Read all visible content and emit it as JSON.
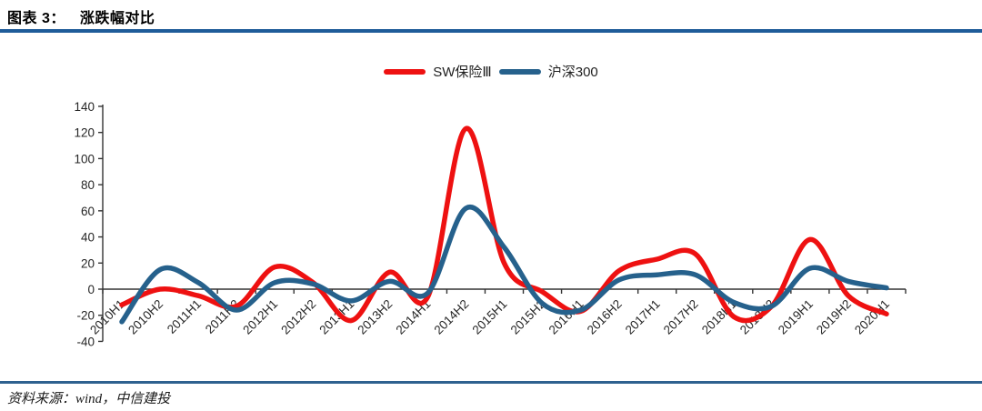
{
  "header": {
    "figure_label": "图表 3：",
    "figure_title": "涨跌幅对比"
  },
  "footer": {
    "source": "资料来源：wind，中信建投"
  },
  "colors": {
    "header_rule": "#1f5c99",
    "footer_rule": "#2e618f",
    "axis": "#333333",
    "tick_label": "#262626"
  },
  "chart_data": {
    "type": "line",
    "title": "涨跌幅对比",
    "smoothed": true,
    "categories": [
      "2010H1",
      "2010H2",
      "2011H1",
      "2011H2",
      "2012H1",
      "2012H2",
      "2013H1",
      "2013H2",
      "2014H1",
      "2014H2",
      "2015H1",
      "2015H2",
      "2016H1",
      "2016H2",
      "2017H1",
      "2017H2",
      "2018H1",
      "2018H2",
      "2019H1",
      "2019H2",
      "2020H1"
    ],
    "series": [
      {
        "name": "SW保险Ⅲ",
        "color": "#ee1111",
        "values": [
          -12,
          0,
          -5,
          -13,
          17,
          5,
          -24,
          13,
          -6,
          123,
          20,
          -2,
          -17,
          14,
          23,
          27,
          -21,
          -13,
          38,
          -5,
          -19
        ]
      },
      {
        "name": "沪深300",
        "color": "#26618c",
        "values": [
          -25,
          15,
          5,
          -16,
          5,
          4,
          -9,
          6,
          -3,
          62,
          32,
          -11,
          -16,
          7,
          11,
          11,
          -10,
          -13,
          16,
          6,
          1
        ]
      }
    ],
    "xlabel": "",
    "ylabel": "",
    "ylim": [
      -40,
      140
    ],
    "ytick_step": 20,
    "legend_position": "top",
    "grid": false,
    "x_labels_rotation_deg": -45
  }
}
